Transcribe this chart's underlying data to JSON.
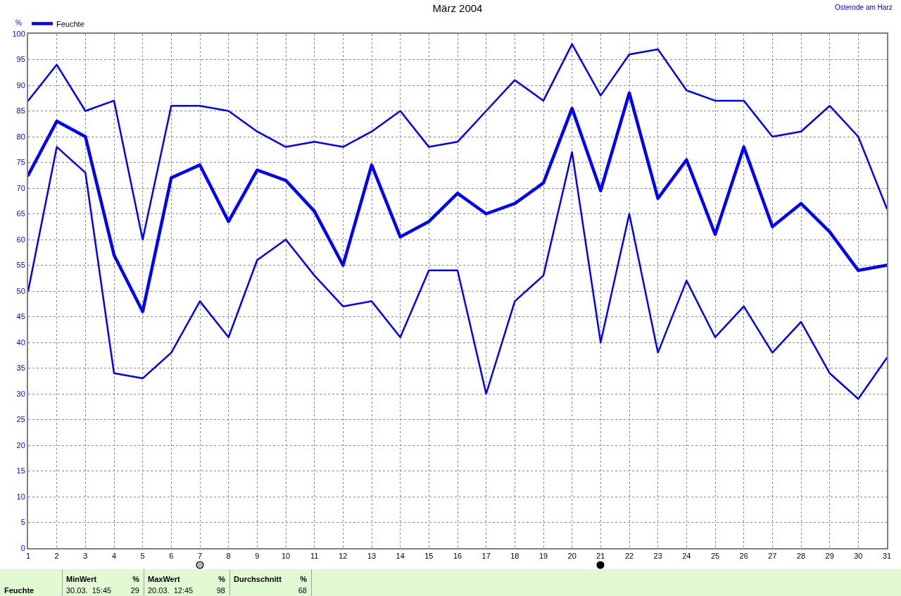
{
  "chart_data": {
    "type": "line",
    "title": "März 2004",
    "subtitle": "Osterode am Harz",
    "ylabel": "%",
    "x": [
      1,
      2,
      3,
      4,
      5,
      6,
      7,
      8,
      9,
      10,
      11,
      12,
      13,
      14,
      15,
      16,
      17,
      18,
      19,
      20,
      21,
      22,
      23,
      24,
      25,
      26,
      27,
      28,
      29,
      30,
      31
    ],
    "series": [
      {
        "color": "#0000ff",
        "values": [
          87,
          94,
          85,
          87,
          60,
          86,
          86,
          85,
          81,
          78,
          79,
          78,
          81,
          85,
          78,
          79,
          85,
          91,
          87,
          98,
          88,
          96,
          97,
          89,
          87,
          87,
          80,
          81,
          86,
          80,
          66
        ]
      },
      {
        "name": "Feuchte",
        "color": "#0000ff",
        "values": [
          72.5,
          83,
          80,
          57,
          46,
          72,
          74.5,
          63.5,
          73.5,
          71.5,
          65.5,
          55,
          74.5,
          60.5,
          63.5,
          69,
          65,
          67,
          71,
          85.5,
          69.5,
          88.5,
          68,
          75.5,
          61,
          78,
          62.5,
          67,
          61.5,
          54,
          55
        ]
      },
      {
        "color": "#0000ff",
        "values": [
          50,
          78,
          73,
          34,
          33,
          38,
          48,
          41,
          56,
          60,
          53,
          47,
          48,
          41,
          54,
          54,
          30,
          48,
          53,
          77,
          40,
          65,
          38,
          52,
          41,
          47,
          38,
          44,
          34,
          29,
          37
        ]
      }
    ],
    "xlim": [
      1,
      31
    ],
    "xticks": [
      1,
      2,
      3,
      4,
      5,
      6,
      7,
      8,
      9,
      10,
      11,
      12,
      13,
      14,
      15,
      16,
      17,
      18,
      19,
      20,
      21,
      22,
      23,
      24,
      25,
      26,
      27,
      28,
      29,
      30,
      31
    ],
    "ylim": [
      0,
      100
    ],
    "yticks": [
      0,
      5,
      10,
      15,
      20,
      25,
      30,
      35,
      40,
      45,
      50,
      55,
      60,
      65,
      70,
      75,
      80,
      85,
      90,
      95,
      100
    ],
    "grid": true,
    "legend": "top left",
    "annotations": [
      "Feuchte",
      "MinWert",
      "%",
      "30.03.  15:45",
      "29",
      "MaxWert",
      "%",
      "20.03.  12:45",
      "98",
      "Durchschnitt",
      "%",
      "68"
    ]
  }
}
